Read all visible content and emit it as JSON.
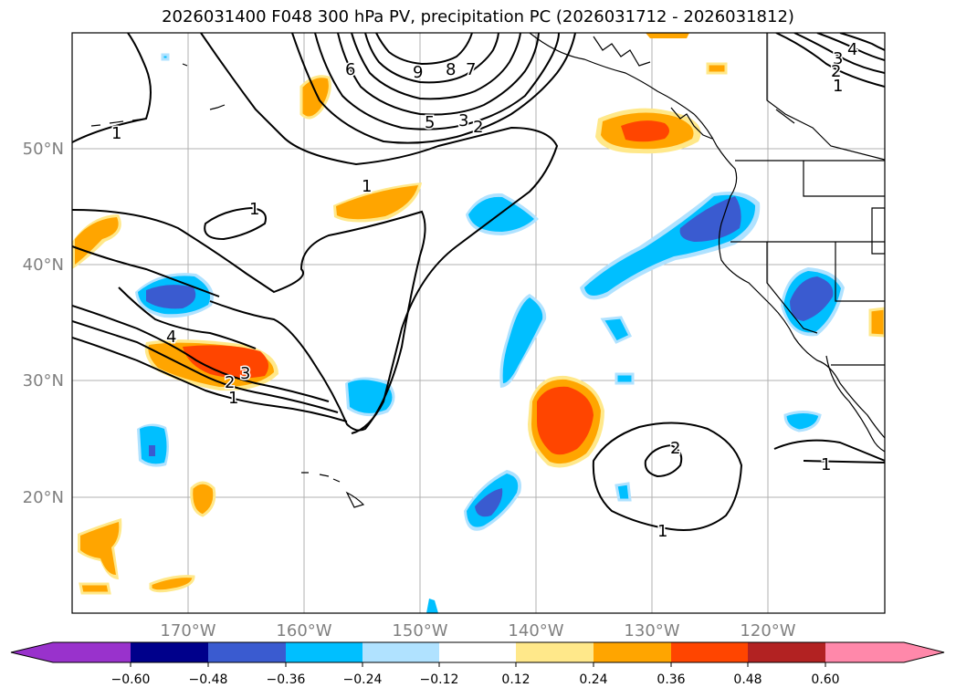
{
  "title": "2026031400 F048 300 hPa PV, precipitation PC (2026031712 - 2026031812)",
  "map": {
    "lat_labels": [
      "50°N",
      "40°N",
      "30°N",
      "20°N"
    ],
    "lon_labels": [
      "170°W",
      "160°W",
      "150°W",
      "140°W",
      "130°W",
      "120°W"
    ],
    "contour_labels": {
      "left_1": "1",
      "upper_6": "6",
      "upper_9": "9",
      "upper_8": "8",
      "upper_7": "7",
      "upper_5": "5",
      "upper_3": "3",
      "upper_2": "2",
      "mid_1a": "1",
      "mid_1b": "1",
      "sw_4": "4",
      "sw_3": "3",
      "sw_2": "2",
      "sw_1": "1",
      "ne_4": "4",
      "ne_3": "3",
      "ne_2": "2",
      "ne_1": "1",
      "se_2": "2",
      "se_1": "1",
      "east_1": "1"
    }
  },
  "colorbar": {
    "ticks": [
      "−0.60",
      "−0.48",
      "−0.36",
      "−0.24",
      "−0.12",
      "0.12",
      "0.24",
      "0.36",
      "0.48",
      "0.60"
    ],
    "colors": [
      "#9932cc",
      "#00008b",
      "#3a5bd0",
      "#00bfff",
      "#b0e2ff",
      "#ffffff",
      "#ffe88a",
      "#ffa500",
      "#ff4500",
      "#b22222",
      "#ff88aa"
    ]
  }
}
